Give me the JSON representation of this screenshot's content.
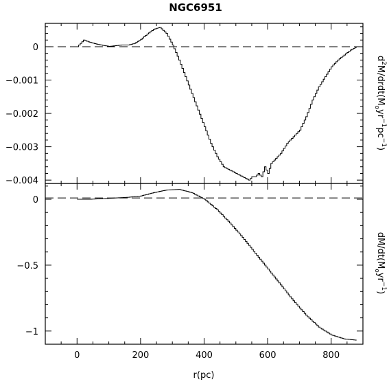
{
  "chart_data": [
    {
      "type": "line",
      "step": true,
      "title": "NGC6951",
      "ylabel": "d2M/drdt(Moyr-1pc-1)",
      "xlim": [
        -100,
        900
      ],
      "ylim": [
        -0.0041,
        0.0007
      ],
      "xticks": [
        0,
        200,
        400,
        600,
        800
      ],
      "yticks": [
        0,
        -0.001,
        -0.002,
        -0.003,
        -0.004
      ],
      "ytick_labels": [
        "0",
        "−0.001",
        "−0.002",
        "−0.003",
        "−0.004"
      ],
      "reference_line": 0,
      "series": [
        {
          "x": [
            0,
            20,
            40,
            60,
            80,
            100,
            120,
            140,
            160,
            180,
            200,
            220,
            240,
            260,
            280,
            300,
            320,
            340,
            360,
            380,
            400,
            420,
            440,
            460,
            480,
            500,
            520,
            540,
            550,
            560,
            570,
            580,
            590,
            600,
            610,
            620,
            640,
            660,
            680,
            700,
            720,
            740,
            760,
            780,
            800,
            820,
            840,
            860,
            880
          ],
          "y": [
            0.0,
            0.0002,
            0.00013,
            8e-05,
            4e-05,
            1e-05,
            3e-05,
            5e-05,
            5e-05,
            0.0001,
            0.00022,
            0.00038,
            0.00052,
            0.00058,
            0.0004,
            5e-05,
            -0.0004,
            -0.0009,
            -0.0014,
            -0.0019,
            -0.0024,
            -0.0029,
            -0.0033,
            -0.0036,
            -0.0037,
            -0.0038,
            -0.0039,
            -0.004,
            -0.0039,
            -0.0039,
            -0.0038,
            -0.0039,
            -0.0036,
            -0.0038,
            -0.0035,
            -0.0034,
            -0.0032,
            -0.0029,
            -0.0027,
            -0.0025,
            -0.0021,
            -0.0016,
            -0.0012,
            -0.0009,
            -0.0006,
            -0.0004,
            -0.00025,
            -0.0001,
            0.0
          ]
        }
      ]
    },
    {
      "type": "line",
      "step": true,
      "xlabel": "r(pc)",
      "ylabel": "dM/dt(Moyr-1)",
      "xlim": [
        -100,
        900
      ],
      "ylim": [
        -1.1,
        0.12
      ],
      "xticks": [
        0,
        200,
        400,
        600,
        800
      ],
      "xtick_labels": [
        "0",
        "200",
        "400",
        "600",
        "800"
      ],
      "yticks": [
        0,
        -0.5,
        -1
      ],
      "ytick_labels": [
        "0",
        "−0.5",
        "−1"
      ],
      "reference_line": 0.01,
      "series": [
        {
          "x": [
            0,
            40,
            80,
            120,
            160,
            200,
            240,
            280,
            320,
            360,
            400,
            440,
            480,
            520,
            560,
            600,
            640,
            680,
            720,
            760,
            800,
            840,
            880
          ],
          "y": [
            0.0,
            0.0,
            0.005,
            0.01,
            0.015,
            0.025,
            0.05,
            0.07,
            0.075,
            0.05,
            0.0,
            -0.08,
            -0.18,
            -0.29,
            -0.41,
            -0.53,
            -0.65,
            -0.77,
            -0.88,
            -0.97,
            -1.03,
            -1.06,
            -1.07
          ]
        }
      ]
    }
  ],
  "labels": {
    "title": "NGC6951",
    "xlabel": "r(pc)",
    "top_ylabel_prefix": "d",
    "top_ylabel_sup1": "2",
    "top_ylabel_mid1": "M/drdt(M",
    "top_ylabel_sub": "o",
    "top_ylabel_mid2": "yr",
    "top_ylabel_sup2": "−1",
    "top_ylabel_mid3": "pc",
    "top_ylabel_sup3": "−1",
    "top_ylabel_end": ")",
    "bottom_ylabel_mid1": "dM/dt(M",
    "bottom_ylabel_sub": "o",
    "bottom_ylabel_mid2": "yr",
    "bottom_ylabel_sup": "−1",
    "bottom_ylabel_end": ")"
  }
}
